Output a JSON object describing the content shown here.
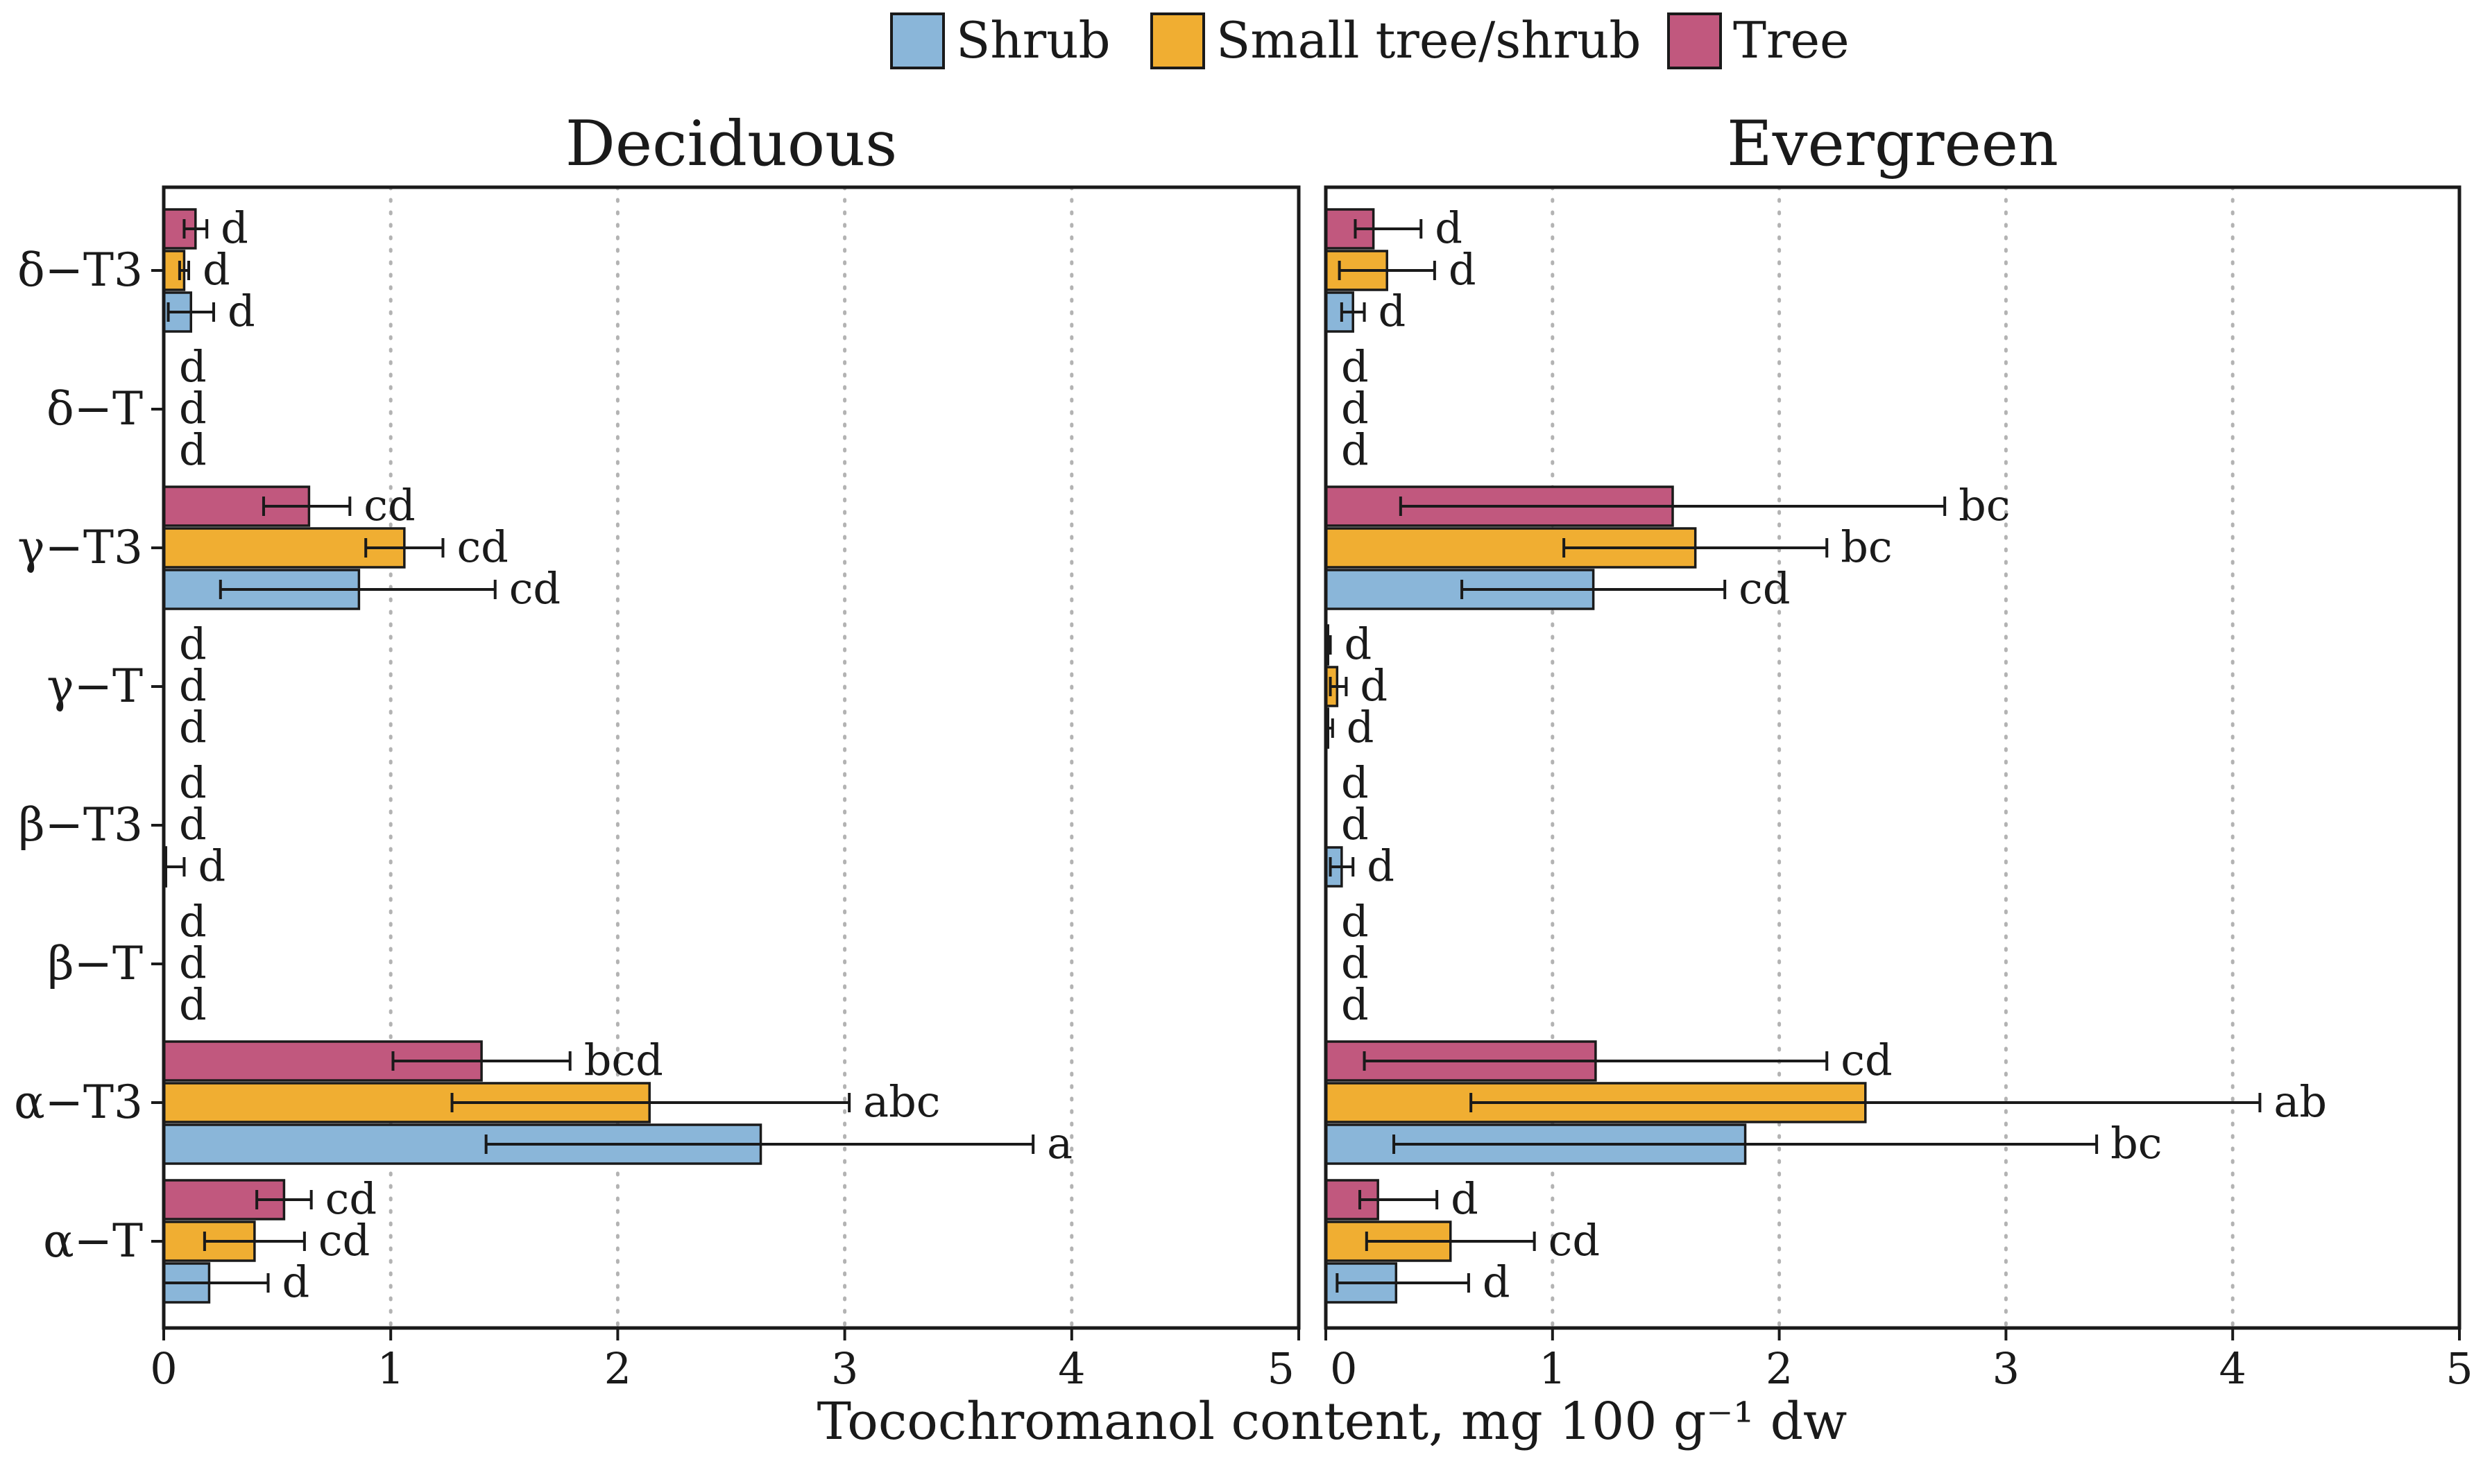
{
  "chart_data": {
    "type": "bar",
    "orientation": "horizontal",
    "xlabel": "Tocochromanol content, mg 100 g⁻¹ dw",
    "xlim": [
      0,
      5
    ],
    "xticks": [
      0,
      1,
      2,
      3,
      4,
      5
    ],
    "legend": {
      "placement": "top-center",
      "entries": [
        {
          "name": "Shrub",
          "color": "#8ab6d9"
        },
        {
          "name": "Small tree/shrub",
          "color": "#f0ae32"
        },
        {
          "name": "Tree",
          "color": "#c1587e"
        }
      ]
    },
    "categories": [
      "δ−T3",
      "δ−T",
      "γ−T3",
      "γ−T",
      "β−T3",
      "β−T",
      "α−T3",
      "α−T"
    ],
    "panels": [
      {
        "title": "Deciduous",
        "series": [
          {
            "name": "Tree",
            "values": [
              0.14,
              0,
              0.64,
              0,
              0,
              0,
              1.4,
              0.53
            ],
            "err_low": [
              0.09,
              0,
              0.44,
              0,
              0,
              0,
              1.01,
              0.41
            ],
            "err_high": [
              0.19,
              0,
              0.82,
              0,
              0,
              0,
              1.79,
              0.65
            ],
            "letters": [
              "d",
              "d",
              "cd",
              "d",
              "d",
              "d",
              "bcd",
              "cd"
            ]
          },
          {
            "name": "Small tree/shrub",
            "values": [
              0.09,
              0,
              1.06,
              0,
              0,
              0,
              2.14,
              0.4
            ],
            "err_low": [
              0.07,
              0,
              0.89,
              0,
              0,
              0,
              1.27,
              0.18
            ],
            "err_high": [
              0.11,
              0,
              1.23,
              0,
              0,
              0,
              3.02,
              0.62
            ],
            "letters": [
              "d",
              "d",
              "cd",
              "d",
              "d",
              "d",
              "abc",
              "cd"
            ]
          },
          {
            "name": "Shrub",
            "values": [
              0.12,
              0,
              0.86,
              0,
              0.01,
              0,
              2.63,
              0.2
            ],
            "err_low": [
              0.02,
              0,
              0.25,
              0,
              0.0,
              0,
              1.42,
              0.0
            ],
            "err_high": [
              0.22,
              0,
              1.46,
              0,
              0.09,
              0,
              3.83,
              0.46
            ],
            "letters": [
              "d",
              "d",
              "cd",
              "d",
              "d",
              "d",
              "a",
              "d"
            ]
          }
        ]
      },
      {
        "title": "Evergreen",
        "series": [
          {
            "name": "Tree",
            "values": [
              0.21,
              0,
              1.53,
              0.01,
              0,
              0,
              1.19,
              0.23
            ],
            "err_low": [
              0.13,
              0,
              0.33,
              0.0,
              0,
              0,
              0.17,
              0.15
            ],
            "err_high": [
              0.42,
              0,
              2.73,
              0.02,
              0,
              0,
              2.21,
              0.49
            ],
            "letters": [
              "d",
              "d",
              "bc",
              "d",
              "d",
              "d",
              "cd",
              "d"
            ]
          },
          {
            "name": "Small tree/shrub",
            "values": [
              0.27,
              0,
              1.63,
              0.05,
              0,
              0,
              2.38,
              0.55
            ],
            "err_low": [
              0.06,
              0,
              1.05,
              0.02,
              0,
              0,
              0.64,
              0.18
            ],
            "err_high": [
              0.48,
              0,
              2.21,
              0.09,
              0,
              0,
              4.12,
              0.92
            ],
            "letters": [
              "d",
              "d",
              "bc",
              "d",
              "d",
              "d",
              "ab",
              "cd"
            ]
          },
          {
            "name": "Shrub",
            "values": [
              0.12,
              0,
              1.18,
              0.01,
              0.07,
              0,
              1.85,
              0.31
            ],
            "err_low": [
              0.07,
              0,
              0.6,
              0.0,
              0.02,
              0,
              0.3,
              0.05
            ],
            "err_high": [
              0.17,
              0,
              1.76,
              0.03,
              0.12,
              0,
              3.4,
              0.63
            ],
            "letters": [
              "d",
              "d",
              "cd",
              "d",
              "d",
              "d",
              "bc",
              "d"
            ]
          }
        ]
      }
    ]
  }
}
